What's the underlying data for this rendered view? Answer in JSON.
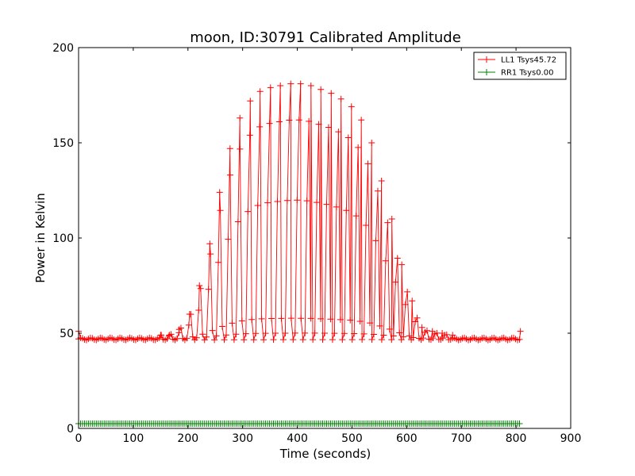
{
  "chart_data": {
    "type": "line",
    "title": "moon, ID:30791 Calibrated Amplitude",
    "xlabel": "Time (seconds)",
    "ylabel": "Power in Kelvin",
    "xlim": [
      0,
      900
    ],
    "ylim": [
      0,
      200
    ],
    "xticks": [
      0,
      100,
      200,
      300,
      400,
      500,
      600,
      700,
      800,
      900
    ],
    "yticks": [
      0,
      50,
      100,
      150,
      200
    ],
    "grid": false,
    "legend_position": "top-right",
    "marker": "+",
    "x_range": [
      0,
      808
    ],
    "x_step": 3.6,
    "baseline": 47,
    "scan_period_seconds": 18,
    "series": [
      {
        "name": "LL1 Tsys45.72",
        "color": "#ff0000",
        "baseline": 47,
        "peaks": [
          {
            "x": 150,
            "y": 49
          },
          {
            "x": 166,
            "y": 49
          },
          {
            "x": 184,
            "y": 52
          },
          {
            "x": 203,
            "y": 60
          },
          {
            "x": 221,
            "y": 75
          },
          {
            "x": 240,
            "y": 97
          },
          {
            "x": 258,
            "y": 124
          },
          {
            "x": 277,
            "y": 147
          },
          {
            "x": 295,
            "y": 163
          },
          {
            "x": 314,
            "y": 172
          },
          {
            "x": 332,
            "y": 177
          },
          {
            "x": 351,
            "y": 179
          },
          {
            "x": 369,
            "y": 180
          },
          {
            "x": 388,
            "y": 181
          },
          {
            "x": 406,
            "y": 181
          },
          {
            "x": 425,
            "y": 180
          },
          {
            "x": 443,
            "y": 178
          },
          {
            "x": 462,
            "y": 176
          },
          {
            "x": 480,
            "y": 173
          },
          {
            "x": 499,
            "y": 169
          },
          {
            "x": 517,
            "y": 162
          },
          {
            "x": 536,
            "y": 150
          },
          {
            "x": 554,
            "y": 130
          },
          {
            "x": 573,
            "y": 110
          },
          {
            "x": 591,
            "y": 86
          },
          {
            "x": 610,
            "y": 67
          },
          {
            "x": 628,
            "y": 53
          },
          {
            "x": 647,
            "y": 51
          },
          {
            "x": 665,
            "y": 50
          },
          {
            "x": 684,
            "y": 49
          }
        ],
        "end_points": [
          {
            "x": 0,
            "y": 51
          },
          {
            "x": 808,
            "y": 51
          }
        ]
      },
      {
        "name": "RR1 Tsys0.00",
        "color": "#008000",
        "baseline": 2.5,
        "peaks": [],
        "end_points": []
      }
    ]
  }
}
